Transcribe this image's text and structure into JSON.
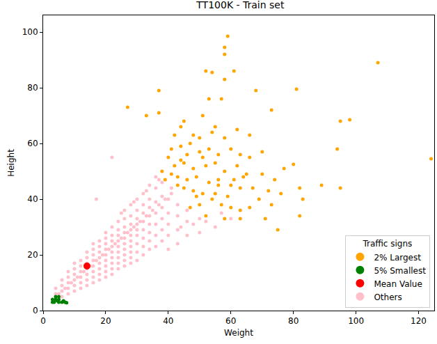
{
  "chart_data": {
    "type": "scatter",
    "title": "TT100K - Train set",
    "x_label": "Weight",
    "y_label": "Height",
    "legend_title": "Traffic signs",
    "legend": "lower right",
    "grid": false,
    "xlim": [
      0,
      125
    ],
    "ylim": [
      0,
      106
    ],
    "xticks": [
      0,
      20,
      40,
      60,
      80,
      100,
      120
    ],
    "yticks": [
      0,
      20,
      40,
      60,
      80,
      100
    ],
    "series": [
      {
        "name": "2% Largest",
        "color": "#ffa500",
        "marker": "circle",
        "x": [
          59,
          58,
          58,
          107,
          52,
          61,
          54,
          58,
          81,
          37,
          68,
          53,
          57,
          27,
          33,
          37,
          51,
          73,
          98,
          95,
          124,
          45,
          44,
          55,
          62,
          42,
          48,
          50,
          58,
          66,
          94,
          80,
          77,
          66,
          41,
          44,
          46,
          50,
          53,
          56,
          60,
          63,
          70,
          40,
          42,
          45,
          48,
          52,
          55,
          58,
          62,
          65,
          70,
          74,
          38,
          41,
          43,
          46,
          49,
          53,
          56,
          60,
          63,
          67,
          72,
          76,
          45,
          48,
          51,
          54,
          57,
          60,
          63,
          89,
          82,
          95,
          83,
          69,
          66,
          71,
          75,
          63,
          58,
          52,
          47,
          50,
          55,
          73,
          82,
          47,
          51,
          44,
          39,
          43,
          49,
          56,
          61,
          64,
          54,
          59
        ],
        "y": [
          98.5,
          94.5,
          92,
          89,
          86,
          86,
          85.5,
          83,
          79.5,
          79,
          79,
          76,
          76,
          73,
          70,
          71,
          70,
          72,
          68.5,
          68,
          54.5,
          68,
          66,
          66,
          65,
          63,
          63,
          62,
          62,
          63,
          58,
          52.5,
          51,
          55,
          58,
          59,
          56,
          57,
          58,
          56,
          58,
          56,
          57,
          55,
          52,
          53,
          51,
          52,
          53,
          50,
          52,
          49,
          49,
          47,
          50,
          49,
          48,
          47,
          48,
          46,
          45,
          45,
          44,
          44,
          43,
          42,
          44,
          43,
          42,
          40,
          38,
          37,
          36,
          45,
          44,
          44,
          40,
          40,
          37,
          33,
          29,
          33,
          33,
          34,
          37,
          38,
          42,
          38,
          34,
          60,
          55,
          54,
          47,
          45,
          41,
          47,
          47,
          48,
          64,
          41
        ]
      },
      {
        "name": "5% Smallest",
        "color": "#008000",
        "marker": "circle",
        "x": [
          3,
          4,
          4,
          5,
          3.5,
          5,
          6,
          6.5,
          7,
          5,
          4.5,
          3,
          7.5
        ],
        "y": [
          3,
          4,
          5,
          4,
          3,
          3,
          3,
          3.5,
          3,
          5,
          3.5,
          4,
          2.8
        ]
      },
      {
        "name": "Mean Value",
        "color": "#ff0000",
        "marker": "circle",
        "x": [
          14
        ],
        "y": [
          16
        ]
      },
      {
        "name": "Others",
        "color": "#ffc0cb",
        "marker": "circle",
        "x": [
          4,
          4,
          4,
          6,
          6,
          6,
          6,
          8,
          8,
          8,
          8,
          8,
          10,
          10,
          10,
          10,
          10,
          10,
          12,
          12,
          12,
          12,
          12,
          12,
          14,
          14,
          14,
          14,
          14,
          14,
          14,
          16,
          16,
          16,
          16,
          16,
          16,
          16,
          16,
          18,
          18,
          18,
          18,
          18,
          18,
          18,
          18,
          20,
          20,
          20,
          20,
          20,
          20,
          20,
          20,
          20,
          22,
          22,
          22,
          22,
          22,
          22,
          22,
          22,
          22,
          24,
          24,
          24,
          24,
          24,
          24,
          24,
          24,
          24,
          26,
          26,
          26,
          26,
          26,
          26,
          26,
          26,
          26,
          26,
          28,
          28,
          28,
          28,
          28,
          28,
          28,
          28,
          28,
          28,
          30,
          30,
          30,
          30,
          30,
          30,
          30,
          30,
          30,
          32,
          32,
          32,
          32,
          32,
          32,
          32,
          32,
          34,
          34,
          34,
          34,
          34,
          34,
          34,
          34,
          36,
          36,
          36,
          36,
          36,
          36,
          36,
          38,
          38,
          38,
          38,
          38,
          38,
          40,
          40,
          40,
          40,
          40,
          43,
          43,
          43,
          43,
          46,
          46,
          46,
          50,
          50,
          55,
          60,
          17,
          22,
          5,
          7,
          9,
          11,
          13,
          15,
          17,
          19,
          21,
          23,
          25,
          27,
          29,
          31,
          33,
          35,
          37,
          39,
          41,
          44,
          48,
          52,
          57,
          25,
          29,
          33,
          37,
          41
        ],
        "y": [
          4,
          6,
          8,
          5,
          7,
          9,
          11,
          6,
          8,
          10,
          12,
          14,
          7,
          9,
          11,
          13,
          15,
          17,
          8,
          10,
          12,
          14,
          16,
          18,
          9,
          11,
          13,
          15,
          17,
          19,
          21,
          10,
          12,
          14,
          16,
          18,
          20,
          22,
          24,
          11,
          13,
          15,
          17,
          19,
          21,
          23,
          25,
          12,
          14,
          16,
          18,
          20,
          22,
          24,
          26,
          28,
          13,
          15,
          17,
          19,
          21,
          23,
          25,
          27,
          30,
          15,
          17,
          19,
          21,
          23,
          25,
          27,
          29,
          32,
          16,
          18,
          20,
          22,
          24,
          26,
          28,
          30,
          33,
          36,
          17,
          19,
          21,
          23,
          25,
          27,
          29,
          31,
          34,
          38,
          18,
          21,
          24,
          27,
          29,
          31,
          33,
          36,
          40,
          20,
          23,
          26,
          29,
          32,
          35,
          38,
          42,
          22,
          25,
          28,
          31,
          34,
          37,
          40,
          45,
          23,
          27,
          31,
          35,
          39,
          44,
          48,
          25,
          29,
          33,
          37,
          41,
          46,
          22,
          27,
          31,
          35,
          40,
          24,
          29,
          34,
          38,
          27,
          32,
          36,
          28,
          33,
          30,
          33,
          40,
          55,
          6,
          8,
          10,
          12,
          14,
          16,
          18,
          20,
          22,
          24,
          26,
          28,
          30,
          32,
          34,
          36,
          38,
          40,
          42,
          30,
          31,
          32,
          35,
          35,
          39,
          43,
          47,
          44
        ]
      }
    ]
  }
}
